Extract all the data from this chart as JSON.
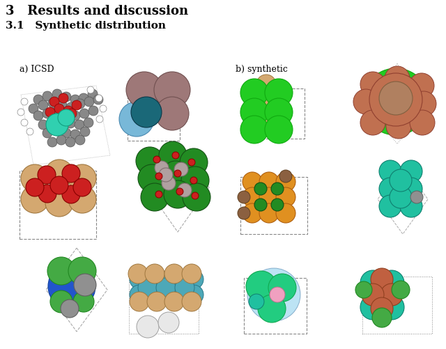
{
  "title1": "3   Results and discussion",
  "title2": "3.1   Synthetic distribution",
  "label_a": "a) ICSD",
  "label_b": "b) synthetic",
  "bg_color": "#ffffff",
  "fig_w": 6.4,
  "fig_h": 5.01,
  "dpi": 100
}
